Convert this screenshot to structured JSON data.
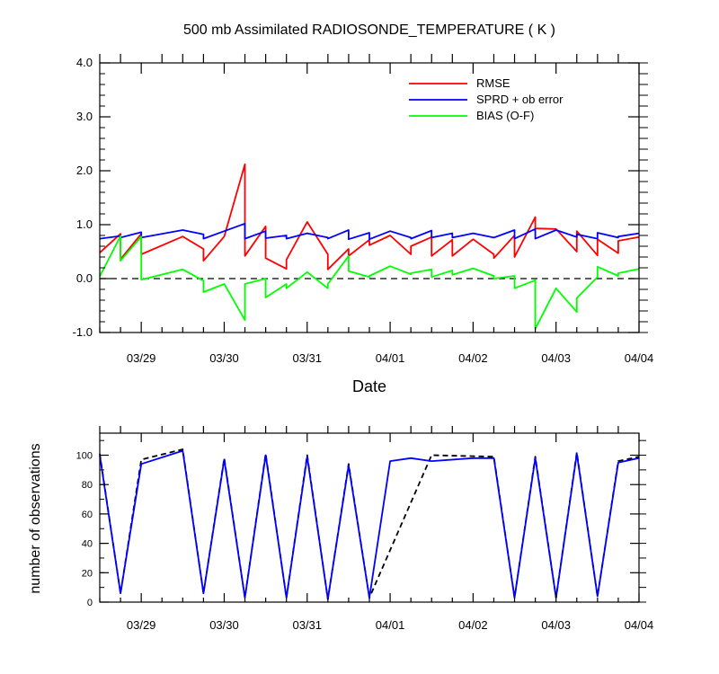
{
  "chart_data": [
    {
      "type": "line",
      "title": "500 mb Assimilated RADIOSONDE_TEMPERATURE ( K )",
      "xlabel": "Date",
      "ylabel": "",
      "xlim": [
        0,
        6.5
      ],
      "ylim": [
        -1.0,
        4.0
      ],
      "y_ticks": [
        -1.0,
        0.0,
        1.0,
        2.0,
        3.0,
        4.0
      ],
      "y_tick_labels": [
        "-1.0",
        "0.0",
        "1.0",
        "2.0",
        "3.0",
        "4.0"
      ],
      "x_tick_positions": [
        0.5,
        1.5,
        2.5,
        3.5,
        4.5,
        5.5,
        6.5
      ],
      "x_tick_labels": [
        "03/29",
        "03/30",
        "03/31",
        "04/01",
        "04/02",
        "04/03",
        "04/04"
      ],
      "zero_line": true,
      "legend_position": "top-right",
      "series": [
        {
          "name": "RMSE",
          "color": "#ff0000",
          "x": [
            0,
            0.25,
            0.25,
            0.5,
            0.5,
            1,
            1.25,
            1.25,
            1.5,
            1.75,
            1.75,
            2,
            2,
            2.25,
            2.25,
            2.5,
            2.75,
            2.75,
            3,
            3,
            3.25,
            3.25,
            3.5,
            3.75,
            3.75,
            4,
            4,
            4.25,
            4.25,
            4.5,
            4.75,
            4.75,
            5,
            5,
            5.25,
            5.25,
            5.5,
            5.75,
            5.75,
            6,
            6,
            6.25,
            6.25,
            6.5
          ],
          "y": [
            0.48,
            0.83,
            0.36,
            0.83,
            0.45,
            0.78,
            0.55,
            0.33,
            0.78,
            2.12,
            0.42,
            0.97,
            0.38,
            0.18,
            0.35,
            1.05,
            0.45,
            0.17,
            0.55,
            0.42,
            0.72,
            0.62,
            0.8,
            0.45,
            0.6,
            0.77,
            0.42,
            0.72,
            0.42,
            0.73,
            0.45,
            0.38,
            0.8,
            0.4,
            1.14,
            0.93,
            0.92,
            0.5,
            0.88,
            0.43,
            0.73,
            0.47,
            0.7,
            0.77
          ]
        },
        {
          "name": "SPRD + ob error",
          "color": "#0000ff",
          "x": [
            0,
            0.25,
            0.25,
            0.5,
            0.5,
            1,
            1.25,
            1.25,
            1.5,
            1.75,
            1.75,
            2,
            2,
            2.25,
            2.25,
            2.5,
            2.75,
            2.75,
            3,
            3,
            3.25,
            3.25,
            3.5,
            3.75,
            3.75,
            4,
            4,
            4.25,
            4.25,
            4.5,
            4.75,
            4.75,
            5,
            5,
            5.25,
            5.25,
            5.5,
            5.75,
            5.75,
            6,
            6,
            6.25,
            6.25,
            6.5
          ],
          "y": [
            0.74,
            0.79,
            0.76,
            0.86,
            0.76,
            0.9,
            0.82,
            0.74,
            0.88,
            1.02,
            0.74,
            0.88,
            0.75,
            0.8,
            0.74,
            0.84,
            0.76,
            0.74,
            0.9,
            0.73,
            0.85,
            0.73,
            0.88,
            0.76,
            0.74,
            0.89,
            0.76,
            0.84,
            0.76,
            0.84,
            0.76,
            0.76,
            0.9,
            0.74,
            0.92,
            0.74,
            0.9,
            0.77,
            0.82,
            0.74,
            0.85,
            0.76,
            0.78,
            0.84
          ]
        },
        {
          "name": "BIAS (O-F)",
          "color": "#00ff00",
          "x": [
            0,
            0.25,
            0.25,
            0.5,
            0.5,
            1,
            1.25,
            1.25,
            1.5,
            1.75,
            1.75,
            2,
            2,
            2.25,
            2.25,
            2.5,
            2.75,
            2.75,
            3,
            3,
            3.25,
            3.25,
            3.5,
            3.75,
            3.75,
            4,
            4,
            4.25,
            4.25,
            4.5,
            4.75,
            4.75,
            5,
            5,
            5.25,
            5.25,
            5.5,
            5.75,
            5.75,
            6,
            6,
            6.25,
            6.25,
            6.5
          ],
          "y": [
            0.04,
            0.79,
            0.33,
            0.78,
            -0.02,
            0.17,
            -0.04,
            -0.25,
            -0.1,
            -0.77,
            -0.1,
            0.0,
            -0.35,
            -0.1,
            -0.18,
            0.12,
            -0.18,
            -0.1,
            0.42,
            0.14,
            0.03,
            0.05,
            0.23,
            0.08,
            0.1,
            0.17,
            0.03,
            0.15,
            0.07,
            0.19,
            0.05,
            0.0,
            0.05,
            -0.18,
            -0.03,
            -0.93,
            -0.18,
            -0.62,
            -0.36,
            0.03,
            0.22,
            0.05,
            0.1,
            0.18
          ]
        }
      ]
    },
    {
      "type": "line",
      "title": "",
      "xlabel": "",
      "ylabel": "number of observations",
      "xlim": [
        0,
        6.5
      ],
      "ylim": [
        0,
        115
      ],
      "y_ticks": [
        0,
        20,
        40,
        60,
        80,
        100
      ],
      "y_tick_labels": [
        "0",
        "20",
        "40",
        "60",
        "80",
        "100"
      ],
      "x_tick_positions": [
        0.5,
        1.5,
        2.5,
        3.5,
        4.5,
        5.5,
        6.5
      ],
      "x_tick_labels": [
        "03/29",
        "03/30",
        "03/31",
        "04/01",
        "04/02",
        "04/03",
        "04/04"
      ],
      "series": [
        {
          "color": "#000000",
          "dash": true,
          "x": [
            0,
            0.25,
            0.5,
            1,
            1.25,
            1.5,
            1.75,
            2,
            2.25,
            2.5,
            2.75,
            3,
            3.25,
            4,
            4.75,
            5,
            5.25,
            5.5,
            5.75,
            6,
            6.25,
            6.5
          ],
          "y": [
            101,
            6,
            97,
            104,
            6,
            98,
            3,
            101,
            3,
            100,
            2,
            94,
            3,
            100,
            99,
            3,
            99,
            3,
            102,
            4,
            96,
            99
          ]
        },
        {
          "color": "#0000ff",
          "dash": false,
          "x": [
            0,
            0.25,
            0.5,
            1,
            1.25,
            1.5,
            1.75,
            2,
            2.25,
            2.5,
            2.75,
            3,
            3.25,
            3.5,
            3.75,
            4,
            4.5,
            4.75,
            5,
            5.25,
            5.5,
            5.75,
            6,
            6.25,
            6.5
          ],
          "y": [
            100,
            6,
            94,
            103,
            6,
            97,
            3,
            100,
            3,
            99,
            2,
            93,
            3,
            96,
            98,
            96,
            98,
            98,
            3,
            98,
            3,
            101,
            4,
            95,
            98
          ]
        }
      ]
    }
  ]
}
